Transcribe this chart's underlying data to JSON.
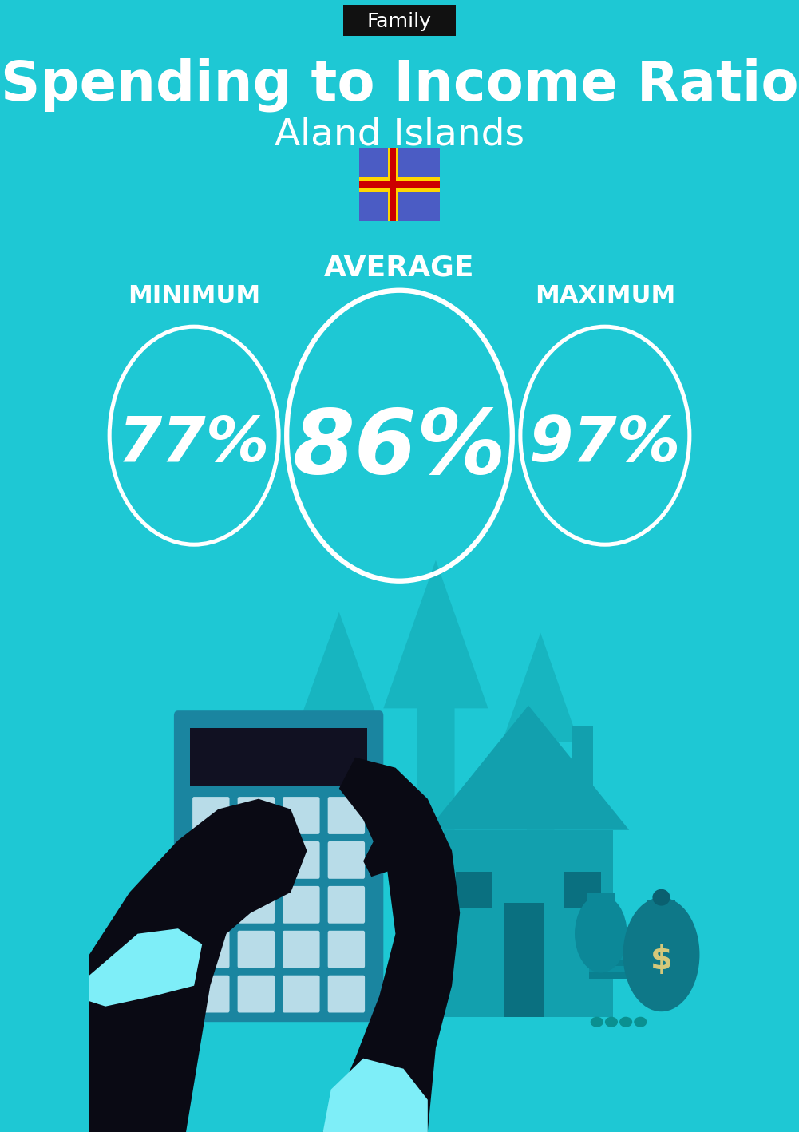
{
  "bg_color": "#1EC8D4",
  "title_tag": "Family",
  "title_tag_bg": "#111111",
  "title_tag_color": "#ffffff",
  "main_title": "Spending to Income Ratio",
  "subtitle": "Aland Islands",
  "min_label": "MINIMUM",
  "avg_label": "AVERAGE",
  "max_label": "MAXIMUM",
  "min_value": "77%",
  "avg_value": "86%",
  "max_value": "97%",
  "circle_color": "#ffffff",
  "text_color": "#ffffff",
  "flag_blue": "#4B5CC4",
  "flag_yellow": "#FFD700",
  "flag_red": "#CC0000",
  "arrow_color": "#17B5C0",
  "house_color": "#12A0AE",
  "bag_color": "#0E8A96",
  "calc_color": "#1A85A0",
  "calc_screen": "#111122",
  "calc_btn": "#A8D8E8",
  "hand_color": "#0A0A14",
  "cuff_color": "#7EEEF8"
}
